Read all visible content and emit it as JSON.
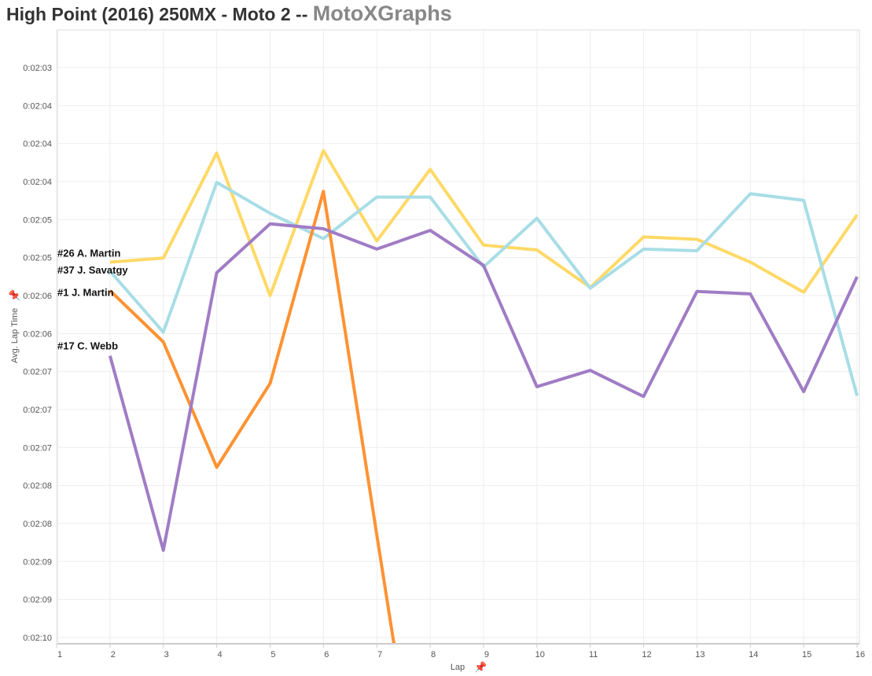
{
  "title": {
    "main": "High Point (2016) 250MX - Moto 2 --",
    "brand": "MotoXGraphs"
  },
  "chart_data": {
    "type": "line",
    "title": "High Point (2016) 250MX - Moto 2",
    "xlabel": "Lap",
    "ylabel": "Avg. Lap Time",
    "x_ticks": [
      1,
      2,
      3,
      4,
      5,
      6,
      7,
      8,
      9,
      10,
      11,
      12,
      13,
      14,
      15,
      16
    ],
    "y_ticks": [
      {
        "value": 123.0,
        "label": "0:02:03"
      },
      {
        "value": 123.467,
        "label": "0:02:04"
      },
      {
        "value": 123.933,
        "label": "0:02:04"
      },
      {
        "value": 124.4,
        "label": "0:02:04"
      },
      {
        "value": 124.867,
        "label": "0:02:05"
      },
      {
        "value": 125.333,
        "label": "0:02:05"
      },
      {
        "value": 125.8,
        "label": "0:02:06"
      },
      {
        "value": 126.267,
        "label": "0:02:06"
      },
      {
        "value": 126.733,
        "label": "0:02:07"
      },
      {
        "value": 127.2,
        "label": "0:02:07"
      },
      {
        "value": 127.667,
        "label": "0:02:07"
      },
      {
        "value": 128.133,
        "label": "0:02:08"
      },
      {
        "value": 128.6,
        "label": "0:02:08"
      },
      {
        "value": 129.067,
        "label": "0:02:09"
      },
      {
        "value": 129.533,
        "label": "0:02:09"
      },
      {
        "value": 130.0,
        "label": "0:02:10"
      }
    ],
    "ylim": [
      122.5,
      130.08
    ],
    "xlim": [
      1,
      16
    ],
    "y_inverted": false,
    "grid": true,
    "series": [
      {
        "name": "#26 A. Martin",
        "color": "#ffd966",
        "x": [
          2,
          3,
          4,
          5,
          6,
          7,
          8,
          9,
          10,
          11,
          12,
          13,
          14,
          15,
          16
        ],
        "values": [
          125.39,
          125.34,
          124.05,
          125.8,
          124.02,
          125.13,
          124.25,
          125.18,
          125.24,
          125.7,
          125.08,
          125.11,
          125.39,
          125.76,
          124.81
        ]
      },
      {
        "name": "#37 J. Savatgy",
        "color": "#a8dde6",
        "x": [
          2,
          3,
          4,
          5,
          6,
          7,
          8,
          9,
          10,
          11,
          12,
          13,
          14,
          15,
          16
        ],
        "values": [
          125.5,
          126.25,
          124.41,
          124.79,
          125.1,
          124.59,
          124.59,
          125.45,
          124.85,
          125.71,
          125.23,
          125.25,
          124.55,
          124.63,
          127.03
        ]
      },
      {
        "name": "#1 J. Martin",
        "color": "#ff9233",
        "x": [
          2,
          3,
          4,
          5,
          6,
          7,
          8
        ],
        "values": [
          125.74,
          126.37,
          127.91,
          126.88,
          124.52,
          128.74,
          132.9
        ]
      },
      {
        "name": "#17 C. Webb",
        "color": "#a07cc5",
        "x": [
          2,
          3,
          4,
          5,
          6,
          7,
          8,
          9,
          10,
          11,
          12,
          13,
          14,
          15,
          16
        ],
        "values": [
          126.54,
          128.93,
          125.52,
          124.92,
          124.98,
          125.23,
          125.0,
          125.43,
          126.92,
          126.72,
          127.04,
          125.75,
          125.78,
          126.98,
          125.57
        ]
      }
    ]
  }
}
